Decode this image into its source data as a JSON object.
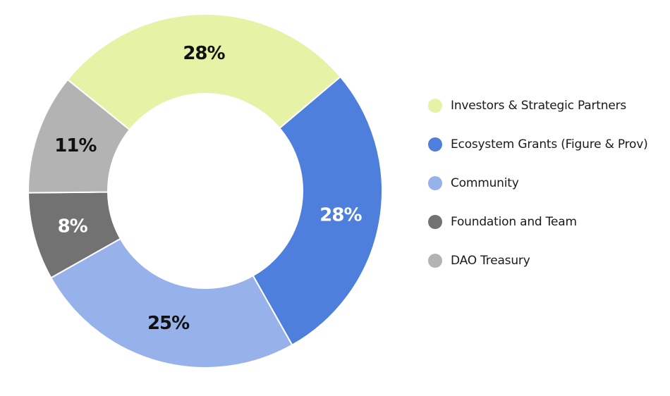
{
  "chart_data": {
    "type": "pie",
    "variant": "donut",
    "categories": [
      "Investors & Strategic Partners",
      "Ecosystem Grants (Figure & Prov)",
      "Community",
      "Foundation and Team",
      "DAO Treasury"
    ],
    "values": [
      28,
      28,
      25,
      8,
      11
    ],
    "data_labels": [
      "28%",
      "28%",
      "25%",
      "8%",
      "11%"
    ],
    "colors": [
      "#e6f2a6",
      "#4e7fdc",
      "#97b1ea",
      "#727272",
      "#b3b3b3"
    ],
    "label_colors": [
      "#111111",
      "#ffffff",
      "#111111",
      "#ffffff",
      "#111111"
    ],
    "title": "",
    "legend_position": "right"
  }
}
